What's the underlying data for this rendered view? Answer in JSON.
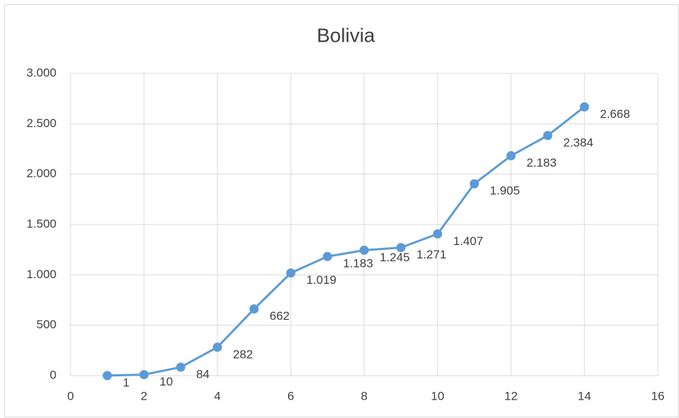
{
  "chart_data": {
    "type": "line",
    "title": "Bolivia",
    "x": [
      1,
      2,
      3,
      4,
      5,
      6,
      7,
      8,
      9,
      10,
      11,
      12,
      13,
      14
    ],
    "values": [
      1,
      10,
      84,
      282,
      662,
      1019,
      1183,
      1245,
      1271,
      1407,
      1905,
      2183,
      2384,
      2668
    ],
    "value_labels": [
      "1",
      "10",
      "84",
      "282",
      "662",
      "1.019",
      "1.183",
      "1.245",
      "1.271",
      "1.407",
      "1.905",
      "2.183",
      "2.384",
      "2.668"
    ],
    "color": "#5b9bd5",
    "xlim": [
      0,
      16
    ],
    "xticks": [
      0,
      2,
      4,
      6,
      8,
      10,
      12,
      14,
      16
    ],
    "ylim": [
      0,
      3000
    ],
    "yticks": [
      0,
      500,
      {
        "value": 1000,
        "label": "1.000"
      },
      {
        "value": 1500,
        "label": "1.500"
      },
      {
        "value": 2000,
        "label": "2.000"
      },
      {
        "value": 2500,
        "label": "2.500"
      },
      {
        "value": 3000,
        "label": "3.000"
      }
    ],
    "grid": true
  }
}
